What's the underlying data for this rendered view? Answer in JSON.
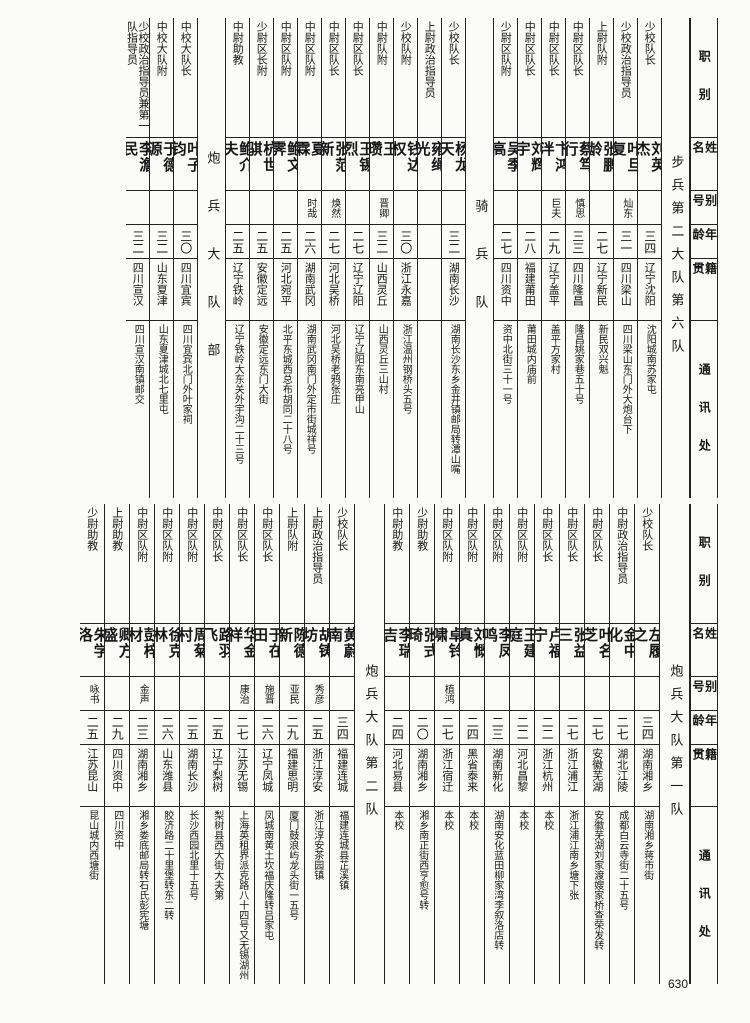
{
  "headers": {
    "rank": "职 别",
    "name": "姓 名",
    "alias": "别号",
    "age": "年龄",
    "native": "籍 贯",
    "address": "通 讯 处"
  },
  "top_sections": {
    "infantry_title": "步兵第二大队第六队",
    "cavalry_title": "骑 兵 队",
    "artillery_hq_title": "炮 兵 大 队 部"
  },
  "bottom_sections": {
    "artillery_q1_title": "炮兵大队第一队",
    "artillery_q2_title": "炮兵大队第二队"
  },
  "top_rows": [
    {
      "rank": "少校队长",
      "name": "刘英杰",
      "alias": "",
      "age": "三四",
      "native": "辽宁沈阳",
      "address": "沈阳城南苏家屯"
    },
    {
      "rank": "少校政治指导员",
      "name": "叶旦复",
      "alias": "灿东",
      "age": "三一",
      "native": "四川梁山",
      "address": "四川梁山东门外大炮台下"
    },
    {
      "rank": "上尉队附",
      "name": "张鹏龄",
      "alias": "",
      "age": "二七",
      "native": "辽宁新民",
      "address": "新民双兴魁"
    },
    {
      "rank": "中尉区队长",
      "name": "蔡笃行",
      "alias": "慎思",
      "age": "三三",
      "native": "四川隆昌",
      "address": "隆昌姚家巷五十号"
    },
    {
      "rank": "中尉区队长",
      "name": "卞鸿泮",
      "alias": "巨夫",
      "age": "二九",
      "native": "辽宁盖平",
      "address": "盖平方家村"
    },
    {
      "rank": "中尉区队长",
      "name": "刘辉宇",
      "alias": "",
      "age": "二八",
      "native": "福建莆田",
      "address": "莆田城内庙前"
    },
    {
      "rank": "少尉区队附",
      "name": "吴季高",
      "alias": "",
      "age": "二七",
      "native": "四川资中",
      "address": "资中北街三十一号"
    },
    {
      "rank": "少校队长",
      "name": "杨龙天",
      "alias": "",
      "age": "三二",
      "native": "湖南长沙",
      "address": "湖南长沙东乡金井镇邮局转潭山嘴"
    },
    {
      "rank": "上尉政治指导员",
      "name": "雍绳光",
      "alias": "",
      "age": "",
      "native": "",
      "address": ""
    },
    {
      "rank": "少校队附",
      "name": "钱达权",
      "alias": "",
      "age": "三〇",
      "native": "浙江永嘉",
      "address": "浙江温州钢桥头五号"
    },
    {
      "rank": "中尉队附",
      "name": "王 瓒",
      "alias": "晋卿",
      "age": "三二",
      "native": "山西灵丘",
      "address": "山西灵丘三山村"
    },
    {
      "rank": "中尉区队长",
      "name": "王锡烈",
      "alias": "",
      "age": "二七",
      "native": "辽宁辽阳",
      "address": "辽宁辽阳东南亮甲山"
    },
    {
      "rank": "中尉区队长",
      "name": "张范新",
      "alias": "焕然",
      "age": "二七",
      "native": "河北吴桥",
      "address": "河北吴桥老鸦张庄"
    },
    {
      "rank": "中尉区队附",
      "name": "夏 霖",
      "alias": "时哉",
      "age": "二六",
      "native": "湖南武冈",
      "address": "湖南武冈南门外定市街城祥号"
    },
    {
      "rank": "中尉区队附",
      "name": "鲍文霁",
      "alias": "",
      "age": "二五",
      "native": "河北宛平",
      "address": "北平东城西总布胡同二十八号"
    },
    {
      "rank": "少尉区长附",
      "name": "杭世骐",
      "alias": "",
      "age": "二五",
      "native": "安徽定远",
      "address": "安徽定远东门大街"
    },
    {
      "rank": "中尉助教",
      "name": "鲍介夫",
      "alias": "",
      "age": "二五",
      "native": "辽宁铁岭",
      "address": "辽宁铁岭大东关外宇沟二十三号"
    },
    {
      "rank": "中校大队长",
      "name": "叶子钧",
      "alias": "",
      "age": "三〇",
      "native": "四川宜宾",
      "address": "四川宜宾北门外叶家祠"
    },
    {
      "rank": "中校大队附",
      "name": "于德源",
      "alias": "",
      "age": "三二",
      "native": "山东夏津",
      "address": "山东夏津城北七里屯"
    },
    {
      "rank": "少校政治指导员兼第一队指导员",
      "name": "李澹民",
      "alias": "",
      "age": "三二",
      "native": "四川宣汉",
      "address": "四川宣汉南镇邮交"
    }
  ],
  "bottom_rows": [
    {
      "rank": "少校队长",
      "name": "左履之",
      "alias": "",
      "age": "三四",
      "native": "湖南湘乡",
      "address": "湖南湘乡蒋市街"
    },
    {
      "rank": "中尉政治指导员",
      "name": "金中化",
      "alias": "",
      "age": "二七",
      "native": "湖北江陵",
      "address": "成都白云寺街二十五号"
    },
    {
      "rank": "中尉区队长",
      "name": "叶名芝",
      "alias": "",
      "age": "二七",
      "native": "安徽芜湖",
      "address": "安徽芜湖刘家渡嫂家桥查荣发转"
    },
    {
      "rank": "中尉区队长",
      "name": "张益三",
      "alias": "",
      "age": "二七",
      "native": "浙江浦江",
      "address": "浙江浦江南乡塘下张"
    },
    {
      "rank": "中尉区队长",
      "name": "卢福宁",
      "alias": "",
      "age": "二二",
      "native": "浙江杭州",
      "address": "本校"
    },
    {
      "rank": "中尉区队附",
      "name": "王建庭",
      "alias": "",
      "age": "二二",
      "native": "河北昌黎",
      "address": "本校"
    },
    {
      "rank": "中尉区队附",
      "name": "李凤鸣",
      "alias": "",
      "age": "二三",
      "native": "湖南新化",
      "address": "湖南安化蓝田柳家湾李叙洛店转"
    },
    {
      "rank": "中尉区队附",
      "name": "刘慨真",
      "alias": "",
      "age": "二四",
      "native": "黑省泰来",
      "address": "本校"
    },
    {
      "rank": "中尉区队附",
      "name": "卓铃啸",
      "alias": "植鸿",
      "age": "二七",
      "native": "浙江宿迁",
      "address": "本校"
    },
    {
      "rank": "少尉助教",
      "name": "张式琦",
      "alias": "",
      "age": "二〇",
      "native": "湖南湘乡",
      "address": "湘乡南正街西亨愈号转"
    },
    {
      "rank": "中尉助教",
      "name": "李瑞吉",
      "alias": "",
      "age": "二四",
      "native": "河北易县",
      "address": "本校"
    },
    {
      "rank": "少校队长",
      "name": "黄蔚南",
      "alias": "",
      "age": "三四",
      "native": "福建连城",
      "address": "福建连城县芷溪镇"
    },
    {
      "rank": "上尉政治指导员",
      "name": "胡铸坊",
      "alias": "秀彦",
      "age": "二五",
      "native": "浙江淳安",
      "address": "浙江淳安茶园镇"
    },
    {
      "rank": "上尉队附",
      "name": "陈德新",
      "alias": "亚民",
      "age": "二九",
      "native": "福建思明",
      "address": "厦门鼓浪屿龙头街一五号"
    },
    {
      "rank": "中尉区队长",
      "name": "于在田",
      "alias": "施晋",
      "age": "二六",
      "native": "辽宁凤城",
      "address": "凤城南黄土坎福庆隆转吕家屯"
    },
    {
      "rank": "中尉区队长",
      "name": "华金祥",
      "alias": "康治",
      "age": "二七",
      "native": "江苏无锡",
      "address": "上海英租界派克路八十四号又无锡湖州"
    },
    {
      "rank": "中尉区队长",
      "name": "路羽飞",
      "alias": "",
      "age": "二五",
      "native": "辽宁梨树",
      "address": "梨树县西大街大夫第"
    },
    {
      "rank": "中尉区队附",
      "name": "周菊村",
      "alias": "",
      "age": "二五",
      "native": "湖南长沙",
      "address": "长沙西园北里十五号"
    },
    {
      "rank": "中尉区队附",
      "name": "徐克林",
      "alias": "",
      "age": "二六",
      "native": "山东潍县",
      "address": "胶济路二十里堡转东二转"
    },
    {
      "rank": "中尉区队附",
      "name": "彭梓材",
      "alias": "金声",
      "age": "二三",
      "native": "湖南湘乡",
      "address": "湘乡娄底邮局转石氏彭宪塘"
    },
    {
      "rank": "上尉助教",
      "name": "卿方盛",
      "alias": "",
      "age": "二九",
      "native": "四川资中",
      "address": "四川资中"
    },
    {
      "rank": "少尉助教",
      "name": "朱学洛",
      "alias": "咏书",
      "age": "二五",
      "native": "江苏昆山",
      "address": "昆山城内西塘街"
    }
  ],
  "page_number": "630"
}
